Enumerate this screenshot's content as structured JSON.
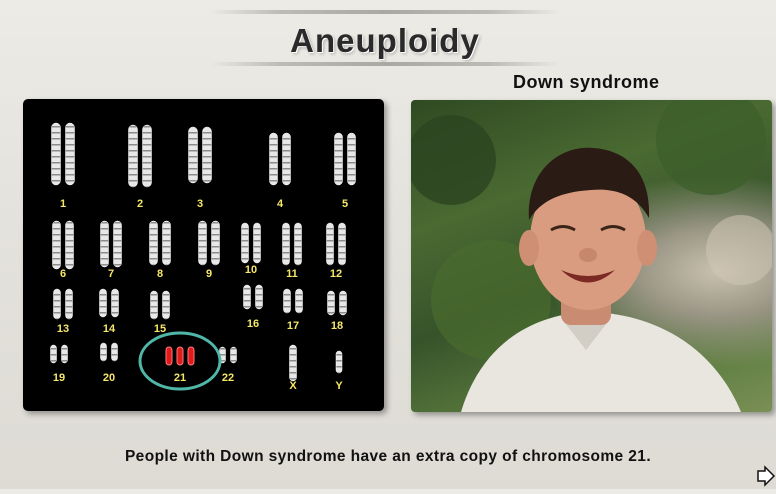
{
  "title": "Aneuploidy",
  "photo_label": "Down syndrome",
  "caption": "People with Down syndrome have an extra copy of chromosome 21.",
  "karyotype": {
    "labels": [
      "1",
      "2",
      "3",
      "4",
      "5",
      "6",
      "7",
      "8",
      "9",
      "10",
      "11",
      "12",
      "13",
      "14",
      "15",
      "16",
      "17",
      "18",
      "19",
      "20",
      "21",
      "22",
      "X",
      "Y"
    ],
    "highlighted_chromosome": "21",
    "highlight_color": "#e11b1b",
    "circle_color": "#4fb7a8"
  },
  "icons": {
    "next": "arrow-right-icon"
  }
}
